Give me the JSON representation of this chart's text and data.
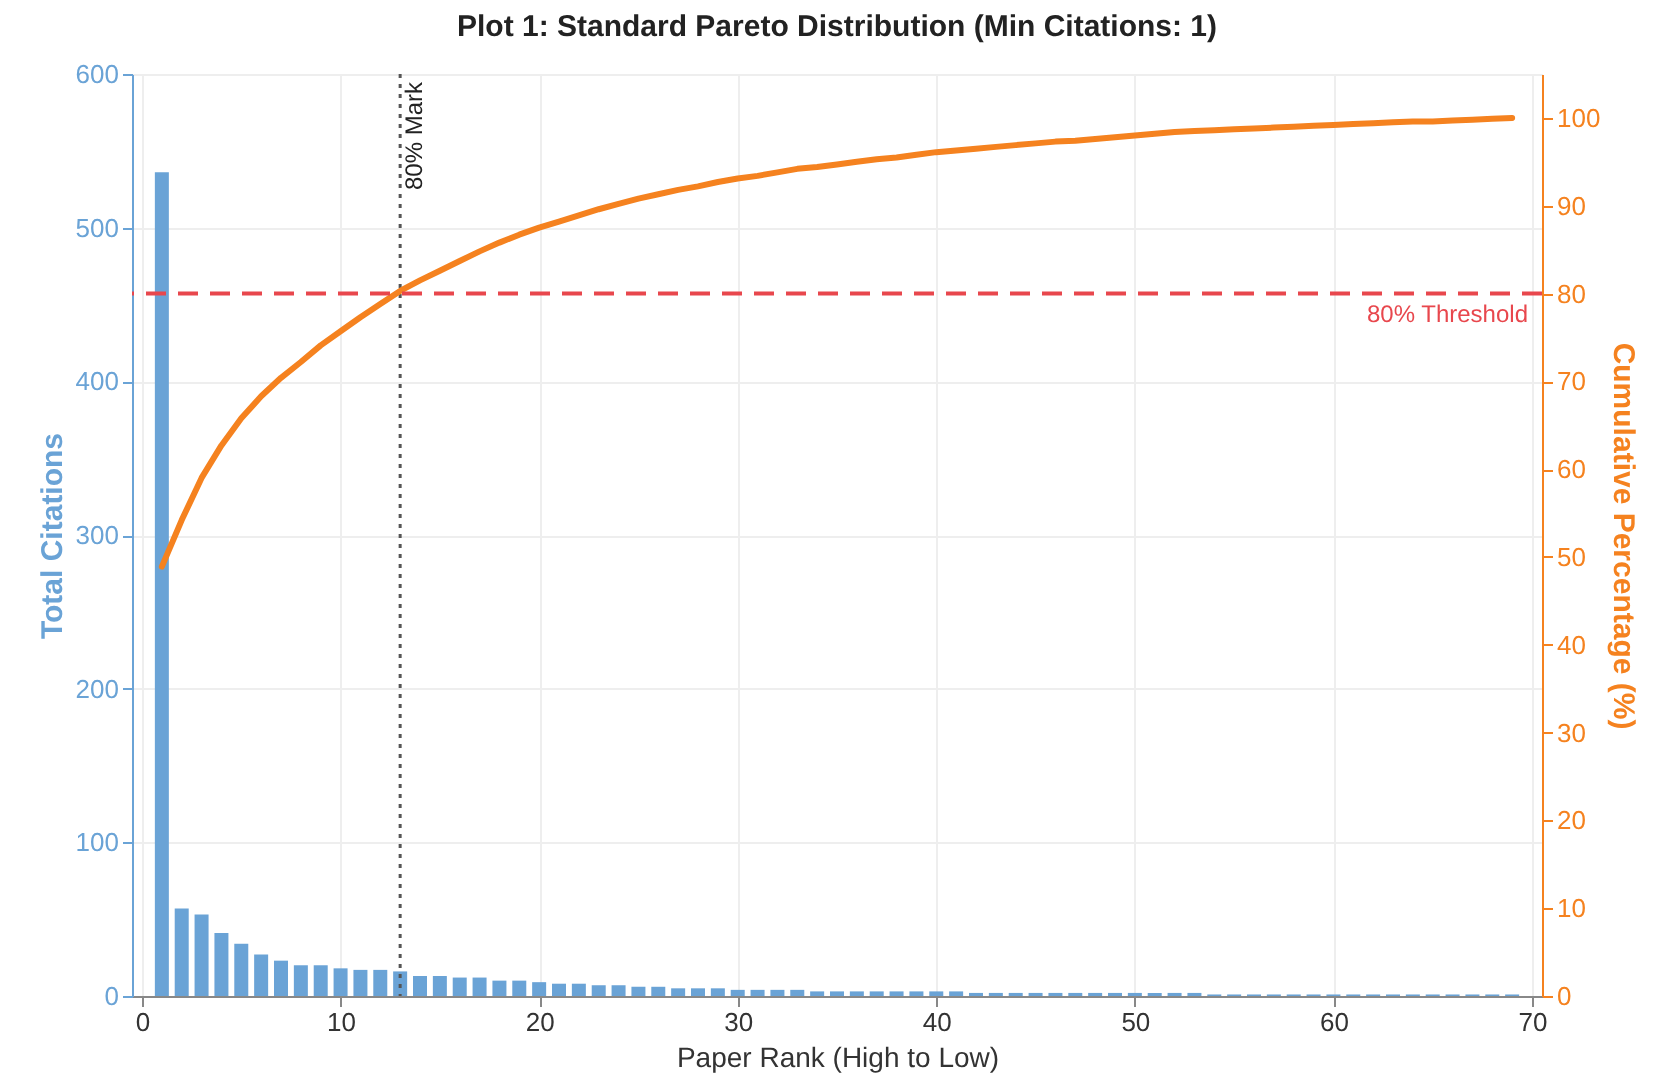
{
  "chart_data": {
    "type": "bar",
    "title": "Plot 1: Standard Pareto Distribution (Min Citations: 1)",
    "xlabel": "Paper Rank (High to Low)",
    "ylabel": "Total Citations",
    "y2label": "Cumulative Percentage (%)",
    "x": [
      1,
      2,
      3,
      4,
      5,
      6,
      7,
      8,
      9,
      10,
      11,
      12,
      13,
      14,
      15,
      16,
      17,
      18,
      19,
      20,
      21,
      22,
      23,
      24,
      25,
      26,
      27,
      28,
      29,
      30,
      31,
      32,
      33,
      34,
      35,
      36,
      37,
      38,
      39,
      40,
      41,
      42,
      43,
      44,
      45,
      46,
      47,
      48,
      49,
      50,
      51,
      52,
      53,
      54,
      55,
      56,
      57,
      58,
      59,
      60,
      61,
      62,
      63,
      64,
      65,
      66,
      67,
      68,
      69
    ],
    "series": [
      {
        "color": "#6aa3d6",
        "values": [
          536,
          57,
          53,
          41,
          34,
          27,
          23,
          20,
          20,
          18,
          17,
          17,
          16,
          13,
          13,
          12,
          12,
          10,
          10,
          9,
          8,
          8,
          7,
          7,
          6,
          6,
          5,
          5,
          5,
          4,
          4,
          4,
          4,
          3,
          3,
          3,
          3,
          3,
          3,
          3,
          3,
          2,
          2,
          2,
          2,
          2,
          2,
          2,
          2,
          2,
          2,
          2,
          2,
          1,
          1,
          1,
          1,
          1,
          1,
          1,
          1,
          1,
          1,
          1,
          1,
          1,
          1,
          1,
          1
        ]
      },
      {
        "type": "line",
        "axis": "y2",
        "color": "#f5821f",
        "values": [
          48.9,
          54.2,
          59.0,
          62.7,
          65.8,
          68.3,
          70.4,
          72.2,
          74.1,
          75.7,
          77.3,
          78.8,
          80.3,
          81.5,
          82.6,
          83.7,
          84.8,
          85.8,
          86.7,
          87.5,
          88.2,
          88.9,
          89.6,
          90.2,
          90.8,
          91.3,
          91.8,
          92.2,
          92.7,
          93.1,
          93.4,
          93.8,
          94.2,
          94.4,
          94.7,
          95.0,
          95.3,
          95.5,
          95.8,
          96.1,
          96.3,
          96.5,
          96.7,
          96.9,
          97.1,
          97.3,
          97.4,
          97.6,
          97.8,
          98.0,
          98.2,
          98.4,
          98.5,
          98.6,
          98.7,
          98.8,
          98.9,
          99.0,
          99.1,
          99.2,
          99.3,
          99.4,
          99.5,
          99.6,
          99.6,
          99.7,
          99.8,
          99.9,
          100.0
        ]
      }
    ],
    "xlim": [
      0,
      70
    ],
    "xticks": [
      0,
      10,
      20,
      30,
      40,
      50,
      60,
      70
    ],
    "ylim": [
      0,
      600
    ],
    "yticks": [
      0,
      100,
      200,
      300,
      400,
      500,
      600
    ],
    "y2lim": [
      0,
      105
    ],
    "y2ticks": [
      0,
      10,
      20,
      30,
      40,
      50,
      60,
      70,
      80,
      90,
      100
    ],
    "ref_lines": [
      {
        "axis": "y2",
        "value": 80,
        "label": "80% Threshold",
        "color": "#e8474d",
        "line_style": "dashed"
      },
      {
        "axis": "x",
        "value": 13,
        "label": "80% Mark",
        "color": "#555555",
        "line_style": "dotted"
      }
    ],
    "grid": true
  }
}
